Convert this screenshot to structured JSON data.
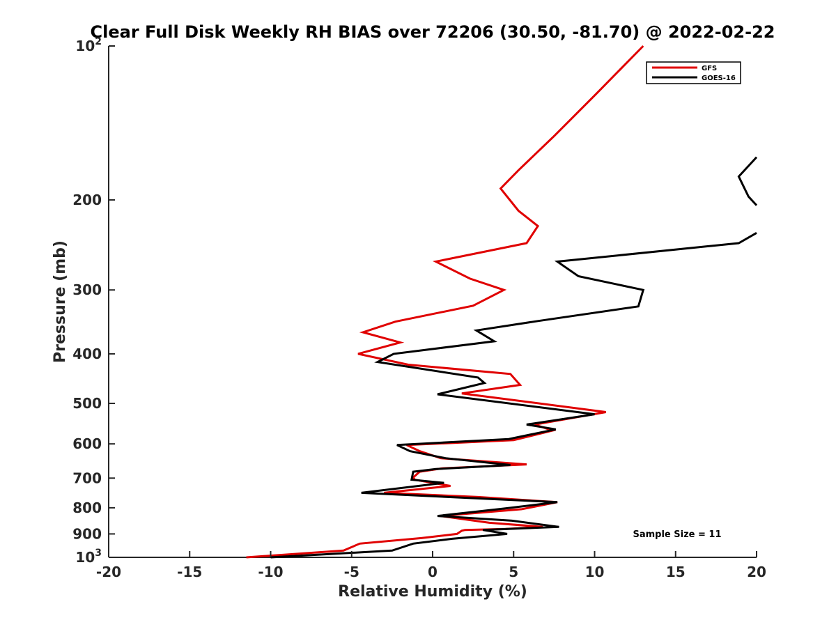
{
  "chart_data": {
    "type": "line",
    "title": "Clear Full Disk Weekly RH BIAS over 72206 (30.50, -81.70) @ 2022-02-22",
    "xlabel": "Relative Humidity (%)",
    "ylabel": "Pressure (mb)",
    "xlim": [
      -20,
      20
    ],
    "ylim": [
      1000,
      100
    ],
    "y_scale": "log",
    "y_reversed": true,
    "grid": false,
    "legend_position": "top-right",
    "x_ticks": [
      "-20",
      "-15",
      "-10",
      "-5",
      "0",
      "5",
      "10",
      "15",
      "20"
    ],
    "y_ticks": [
      {
        "value": 100,
        "label": "10",
        "sup": "2"
      },
      {
        "value": 200,
        "label": "200",
        "sup": ""
      },
      {
        "value": 300,
        "label": "300",
        "sup": ""
      },
      {
        "value": 400,
        "label": "400",
        "sup": ""
      },
      {
        "value": 500,
        "label": "500",
        "sup": ""
      },
      {
        "value": 600,
        "label": "600",
        "sup": ""
      },
      {
        "value": 700,
        "label": "700",
        "sup": ""
      },
      {
        "value": 800,
        "label": "800",
        "sup": ""
      },
      {
        "value": 900,
        "label": "900",
        "sup": ""
      },
      {
        "value": 1000,
        "label": "10",
        "sup": "3"
      }
    ],
    "annotation": "Sample Size = 11",
    "series": [
      {
        "name": "GFS",
        "color": "#e00000",
        "points": [
          [
            13.0,
            100
          ],
          [
            10.0,
            125
          ],
          [
            7.5,
            150
          ],
          [
            5.3,
            175
          ],
          [
            4.2,
            190
          ],
          [
            5.3,
            210
          ],
          [
            6.5,
            225
          ],
          [
            5.8,
            243
          ],
          [
            0.2,
            264
          ],
          [
            2.3,
            285
          ],
          [
            4.4,
            300
          ],
          [
            2.5,
            322
          ],
          [
            -2.3,
            346
          ],
          [
            -4.3,
            363
          ],
          [
            -2.0,
            380
          ],
          [
            -4.6,
            400
          ],
          [
            -1.5,
            420
          ],
          [
            4.8,
            438
          ],
          [
            5.4,
            460
          ],
          [
            1.8,
            478
          ],
          [
            10.7,
            520
          ],
          [
            6.3,
            550
          ],
          [
            7.4,
            565
          ],
          [
            5.0,
            590
          ],
          [
            -1.6,
            603
          ],
          [
            -0.8,
            620
          ],
          [
            0.5,
            640
          ],
          [
            5.8,
            658
          ],
          [
            0.6,
            670
          ],
          [
            -0.8,
            680
          ],
          [
            -1.2,
            698
          ],
          [
            -1.1,
            705
          ],
          [
            1.1,
            725
          ],
          [
            -3.0,
            748
          ],
          [
            2.8,
            762
          ],
          [
            7.7,
            780
          ],
          [
            5.5,
            805
          ],
          [
            0.5,
            830
          ],
          [
            3.5,
            856
          ],
          [
            6.8,
            872
          ],
          [
            4.5,
            880
          ],
          [
            2.0,
            884
          ],
          [
            1.8,
            887
          ],
          [
            1.5,
            900
          ],
          [
            -0.7,
            917
          ],
          [
            -4.5,
            940
          ],
          [
            -5.5,
            970
          ],
          [
            -11.5,
            1000
          ]
        ]
      },
      {
        "name": "GOES-16",
        "color": "#000000",
        "points": [
          [
            20.0,
            165
          ],
          [
            18.9,
            180
          ],
          [
            19.5,
            197
          ],
          [
            20.0,
            205
          ],
          null,
          [
            20.0,
            232
          ],
          [
            18.9,
            243
          ],
          [
            7.7,
            264
          ],
          [
            9.0,
            282
          ],
          [
            13.0,
            300
          ],
          [
            12.7,
            323
          ],
          [
            6.5,
            345
          ],
          [
            2.7,
            360
          ],
          [
            3.8,
            378
          ],
          [
            -2.4,
            400
          ],
          [
            -3.4,
            415
          ],
          [
            2.8,
            445
          ],
          [
            3.2,
            456
          ],
          [
            0.3,
            480
          ],
          [
            10.0,
            525
          ],
          [
            5.8,
            550
          ],
          [
            7.6,
            562
          ],
          [
            4.7,
            587
          ],
          [
            -2.2,
            603
          ],
          [
            -1.4,
            620
          ],
          [
            0.8,
            640
          ],
          [
            4.8,
            660
          ],
          [
            0.2,
            672
          ],
          [
            -1.2,
            680
          ],
          [
            -1.3,
            705
          ],
          [
            0.7,
            715
          ],
          [
            -4.4,
            748
          ],
          [
            7.7,
            780
          ],
          [
            4.5,
            802
          ],
          [
            0.3,
            830
          ],
          [
            4.9,
            848
          ],
          [
            7.8,
            872
          ],
          [
            3.1,
            884
          ],
          [
            4.6,
            900
          ],
          [
            1.2,
            920
          ],
          [
            -1.2,
            940
          ],
          [
            -2.5,
            970
          ],
          [
            -10.0,
            1000
          ]
        ]
      }
    ]
  }
}
